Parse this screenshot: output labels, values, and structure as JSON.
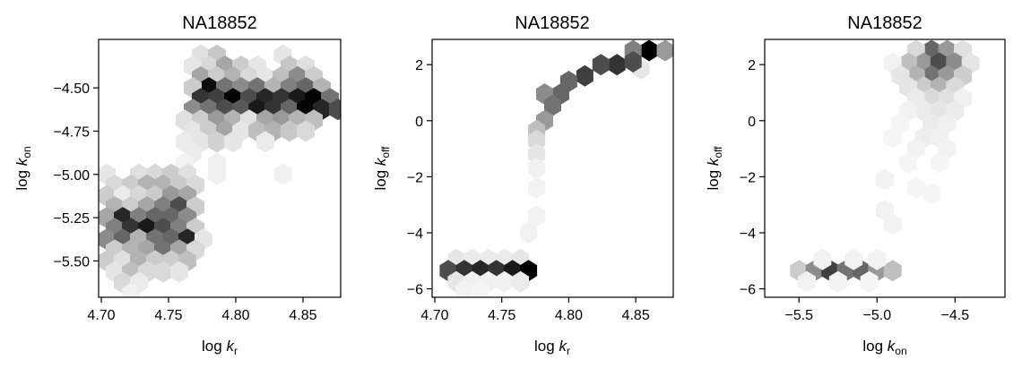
{
  "chart_data": [
    {
      "type": "heatmap",
      "subtype": "hexbin",
      "title": "NA18852",
      "xlabel": {
        "base": "log ",
        "italic": "k",
        "sub": "r"
      },
      "ylabel": {
        "base": "log ",
        "italic": "k",
        "sub": "on"
      },
      "xlim": [
        4.698,
        4.878
      ],
      "ylim": [
        -5.71,
        -4.22
      ],
      "xticks": [
        4.7,
        4.75,
        4.8,
        4.85
      ],
      "xtick_labels": [
        "4.70",
        "4.75",
        "4.80",
        "4.85"
      ],
      "yticks": [
        -4.5,
        -4.75,
        -5.0,
        -5.25,
        -5.5
      ],
      "ytick_labels": [
        "−4.50",
        "−4.75",
        "−5.00",
        "−5.25",
        "−5.50"
      ],
      "colormap": "greys",
      "bins": [
        [
          4.774,
          -4.312,
          0.12
        ],
        [
          4.786,
          -4.312,
          0.22
        ],
        [
          4.835,
          -4.312,
          0.1
        ],
        [
          4.78,
          -4.375,
          0.15
        ],
        [
          4.792,
          -4.375,
          0.35
        ],
        [
          4.804,
          -4.375,
          0.2
        ],
        [
          4.816,
          -4.375,
          0.1
        ],
        [
          4.84,
          -4.375,
          0.22
        ],
        [
          4.852,
          -4.375,
          0.12
        ],
        [
          4.768,
          -4.375,
          0.1
        ],
        [
          4.774,
          -4.437,
          0.35
        ],
        [
          4.786,
          -4.437,
          0.2
        ],
        [
          4.798,
          -4.437,
          0.3
        ],
        [
          4.81,
          -4.437,
          0.15
        ],
        [
          4.822,
          -4.437,
          0.1
        ],
        [
          4.834,
          -4.437,
          0.25
        ],
        [
          4.846,
          -4.437,
          0.45
        ],
        [
          4.858,
          -4.437,
          0.2
        ],
        [
          4.78,
          -4.5,
          0.95
        ],
        [
          4.792,
          -4.5,
          0.55
        ],
        [
          4.804,
          -4.5,
          0.45
        ],
        [
          4.816,
          -4.5,
          0.55
        ],
        [
          4.828,
          -4.5,
          0.3
        ],
        [
          4.84,
          -4.5,
          0.5
        ],
        [
          4.852,
          -4.5,
          0.6
        ],
        [
          4.864,
          -4.5,
          0.3
        ],
        [
          4.768,
          -4.5,
          0.2
        ],
        [
          4.774,
          -4.563,
          0.8
        ],
        [
          4.786,
          -4.563,
          0.75
        ],
        [
          4.798,
          -4.563,
          0.98
        ],
        [
          4.81,
          -4.563,
          0.7
        ],
        [
          4.822,
          -4.563,
          0.85
        ],
        [
          4.834,
          -4.563,
          0.8
        ],
        [
          4.846,
          -4.563,
          0.9
        ],
        [
          4.858,
          -4.563,
          0.98
        ],
        [
          4.87,
          -4.563,
          0.55
        ],
        [
          4.768,
          -4.625,
          0.45
        ],
        [
          4.78,
          -4.625,
          0.55
        ],
        [
          4.792,
          -4.625,
          0.7
        ],
        [
          4.804,
          -4.625,
          0.65
        ],
        [
          4.816,
          -4.625,
          0.9
        ],
        [
          4.828,
          -4.625,
          0.8
        ],
        [
          4.84,
          -4.625,
          0.6
        ],
        [
          4.852,
          -4.625,
          0.98
        ],
        [
          4.864,
          -4.625,
          0.85
        ],
        [
          4.876,
          -4.625,
          0.7
        ],
        [
          4.762,
          -4.687,
          0.12
        ],
        [
          4.774,
          -4.687,
          0.2
        ],
        [
          4.786,
          -4.687,
          0.4
        ],
        [
          4.798,
          -4.687,
          0.3
        ],
        [
          4.81,
          -4.687,
          0.12
        ],
        [
          4.822,
          -4.687,
          0.35
        ],
        [
          4.834,
          -4.687,
          0.4
        ],
        [
          4.846,
          -4.687,
          0.3
        ],
        [
          4.858,
          -4.687,
          0.25
        ],
        [
          4.768,
          -4.75,
          0.1
        ],
        [
          4.78,
          -4.75,
          0.2
        ],
        [
          4.792,
          -4.75,
          0.35
        ],
        [
          4.804,
          -4.75,
          0.1
        ],
        [
          4.816,
          -4.75,
          0.25
        ],
        [
          4.828,
          -4.75,
          0.3
        ],
        [
          4.84,
          -4.75,
          0.22
        ],
        [
          4.852,
          -4.75,
          0.15
        ],
        [
          4.762,
          -4.812,
          0.08
        ],
        [
          4.774,
          -4.812,
          0.1
        ],
        [
          4.786,
          -4.812,
          0.18
        ],
        [
          4.798,
          -4.812,
          0.1
        ],
        [
          4.822,
          -4.812,
          0.08
        ],
        [
          4.768,
          -4.875,
          0.08
        ],
        [
          4.786,
          -4.937,
          0.06
        ],
        [
          4.762,
          -4.937,
          0.05
        ],
        [
          4.786,
          -5.0,
          0.06
        ],
        [
          4.835,
          -5.0,
          0.06
        ],
        [
          4.704,
          -5.0,
          0.1
        ],
        [
          4.728,
          -5.0,
          0.12
        ],
        [
          4.74,
          -5.0,
          0.15
        ],
        [
          4.752,
          -5.0,
          0.2
        ],
        [
          4.764,
          -5.0,
          0.12
        ],
        [
          4.71,
          -5.063,
          0.15
        ],
        [
          4.722,
          -5.063,
          0.2
        ],
        [
          4.734,
          -5.063,
          0.3
        ],
        [
          4.746,
          -5.063,
          0.3
        ],
        [
          4.758,
          -5.063,
          0.2
        ],
        [
          4.77,
          -5.063,
          0.15
        ],
        [
          4.704,
          -5.125,
          0.2
        ],
        [
          4.716,
          -5.125,
          0.08
        ],
        [
          4.728,
          -5.125,
          0.15
        ],
        [
          4.74,
          -5.125,
          0.2
        ],
        [
          4.752,
          -5.125,
          0.4
        ],
        [
          4.764,
          -5.125,
          0.35
        ],
        [
          4.71,
          -5.188,
          0.3
        ],
        [
          4.722,
          -5.188,
          0.2
        ],
        [
          4.734,
          -5.188,
          0.35
        ],
        [
          4.746,
          -5.188,
          0.5
        ],
        [
          4.758,
          -5.188,
          0.7
        ],
        [
          4.77,
          -5.188,
          0.2
        ],
        [
          4.704,
          -5.25,
          0.35
        ],
        [
          4.716,
          -5.25,
          0.85
        ],
        [
          4.728,
          -5.25,
          0.5
        ],
        [
          4.74,
          -5.25,
          0.6
        ],
        [
          4.752,
          -5.25,
          0.6
        ],
        [
          4.764,
          -5.25,
          0.45
        ],
        [
          4.71,
          -5.313,
          0.5
        ],
        [
          4.722,
          -5.313,
          0.8
        ],
        [
          4.734,
          -5.313,
          0.9
        ],
        [
          4.746,
          -5.313,
          0.7
        ],
        [
          4.758,
          -5.313,
          0.5
        ],
        [
          4.77,
          -5.313,
          0.2
        ],
        [
          4.704,
          -5.375,
          0.45
        ],
        [
          4.716,
          -5.375,
          0.6
        ],
        [
          4.728,
          -5.375,
          0.3
        ],
        [
          4.74,
          -5.375,
          0.55
        ],
        [
          4.752,
          -5.375,
          0.6
        ],
        [
          4.764,
          -5.375,
          0.85
        ],
        [
          4.776,
          -5.375,
          0.1
        ],
        [
          4.71,
          -5.438,
          0.2
        ],
        [
          4.722,
          -5.438,
          0.3
        ],
        [
          4.734,
          -5.438,
          0.35
        ],
        [
          4.746,
          -5.438,
          0.55
        ],
        [
          4.758,
          -5.438,
          0.35
        ],
        [
          4.77,
          -5.438,
          0.15
        ],
        [
          4.704,
          -5.5,
          0.2
        ],
        [
          4.716,
          -5.5,
          0.12
        ],
        [
          4.728,
          -5.5,
          0.3
        ],
        [
          4.74,
          -5.5,
          0.2
        ],
        [
          4.752,
          -5.5,
          0.2
        ],
        [
          4.764,
          -5.5,
          0.25
        ],
        [
          4.71,
          -5.563,
          0.1
        ],
        [
          4.722,
          -5.563,
          0.25
        ],
        [
          4.734,
          -5.563,
          0.15
        ],
        [
          4.746,
          -5.563,
          0.15
        ],
        [
          4.758,
          -5.563,
          0.1
        ],
        [
          4.716,
          -5.625,
          0.15
        ],
        [
          4.728,
          -5.625,
          0.08
        ],
        [
          4.722,
          -5.688,
          0.06
        ]
      ]
    },
    {
      "type": "heatmap",
      "subtype": "hexbin",
      "title": "NA18852",
      "xlabel": {
        "base": "log ",
        "italic": "k",
        "sub": "r"
      },
      "ylabel": {
        "base": "log ",
        "italic": "k",
        "sub": "off"
      },
      "xlim": [
        4.698,
        4.878
      ],
      "ylim": [
        -6.3,
        2.9
      ],
      "xticks": [
        4.7,
        4.75,
        4.8,
        4.85
      ],
      "xtick_labels": [
        "4.70",
        "4.75",
        "4.80",
        "4.85"
      ],
      "yticks": [
        2,
        0,
        -2,
        -4,
        -6
      ],
      "ytick_labels": [
        "2",
        "0",
        "−2",
        "−4",
        "−6"
      ],
      "colormap": "greys",
      "bins": [
        [
          4.86,
          2.5,
          1.0
        ],
        [
          4.872,
          2.5,
          0.4
        ],
        [
          4.848,
          2.5,
          0.5
        ],
        [
          4.854,
          1.85,
          0.1
        ],
        [
          4.836,
          2.0,
          0.8
        ],
        [
          4.824,
          2.0,
          0.7
        ],
        [
          4.848,
          2.1,
          0.7
        ],
        [
          4.812,
          1.6,
          0.75
        ],
        [
          4.8,
          1.4,
          0.6
        ],
        [
          4.794,
          0.95,
          0.6
        ],
        [
          4.782,
          0.95,
          0.45
        ],
        [
          4.788,
          0.55,
          0.55
        ],
        [
          4.782,
          0.0,
          0.4
        ],
        [
          4.776,
          -0.35,
          0.25
        ],
        [
          4.776,
          -0.7,
          0.15
        ],
        [
          4.776,
          -1.2,
          0.1
        ],
        [
          4.776,
          -1.7,
          0.06
        ],
        [
          4.776,
          -2.4,
          0.05
        ],
        [
          4.776,
          -3.4,
          0.05
        ],
        [
          4.77,
          -4.0,
          0.05
        ],
        [
          4.716,
          -4.95,
          0.1
        ],
        [
          4.728,
          -4.95,
          0.08
        ],
        [
          4.74,
          -4.95,
          0.08
        ],
        [
          4.752,
          -4.95,
          0.08
        ],
        [
          4.764,
          -4.95,
          0.1
        ],
        [
          4.71,
          -5.35,
          0.7
        ],
        [
          4.722,
          -5.35,
          0.8
        ],
        [
          4.734,
          -5.35,
          0.85
        ],
        [
          4.746,
          -5.35,
          0.8
        ],
        [
          4.758,
          -5.35,
          0.9
        ],
        [
          4.77,
          -5.35,
          1.0
        ],
        [
          4.716,
          -5.75,
          0.1
        ],
        [
          4.728,
          -5.75,
          0.06
        ],
        [
          4.74,
          -5.75,
          0.06
        ],
        [
          4.752,
          -5.75,
          0.06
        ],
        [
          4.764,
          -5.75,
          0.08
        ],
        [
          4.722,
          -6.05,
          0.05
        ],
        [
          4.734,
          -6.05,
          0.04
        ]
      ]
    },
    {
      "type": "heatmap",
      "subtype": "hexbin",
      "title": "NA18852",
      "xlabel": {
        "base": "log ",
        "italic": "k",
        "sub": "on"
      },
      "ylabel": {
        "base": "log ",
        "italic": "k",
        "sub": "off"
      },
      "xlim": [
        -5.72,
        -4.18
      ],
      "ylim": [
        -6.3,
        2.9
      ],
      "xticks": [
        -5.5,
        -5.0,
        -4.5
      ],
      "xtick_labels": [
        "−5.5",
        "−5.0",
        "−4.5"
      ],
      "yticks": [
        2,
        0,
        -2,
        -4,
        -6
      ],
      "ytick_labels": [
        "2",
        "0",
        "−2",
        "−4",
        "−6"
      ],
      "colormap": "greys",
      "bins": [
        [
          -4.65,
          2.5,
          0.6
        ],
        [
          -4.55,
          2.5,
          0.4
        ],
        [
          -4.75,
          2.5,
          0.15
        ],
        [
          -4.45,
          2.5,
          0.12
        ],
        [
          -4.7,
          2.05,
          0.4
        ],
        [
          -4.6,
          2.05,
          0.7
        ],
        [
          -4.5,
          2.05,
          0.45
        ],
        [
          -4.8,
          2.05,
          0.25
        ],
        [
          -4.4,
          2.05,
          0.1
        ],
        [
          -4.9,
          2.05,
          0.05
        ],
        [
          -4.65,
          1.6,
          0.55
        ],
        [
          -4.55,
          1.6,
          0.4
        ],
        [
          -4.75,
          1.6,
          0.3
        ],
        [
          -4.45,
          1.6,
          0.2
        ],
        [
          -4.85,
          1.6,
          0.1
        ],
        [
          -4.7,
          1.2,
          0.2
        ],
        [
          -4.6,
          1.2,
          0.3
        ],
        [
          -4.5,
          1.2,
          0.15
        ],
        [
          -4.8,
          1.2,
          0.1
        ],
        [
          -4.65,
          0.8,
          0.15
        ],
        [
          -4.55,
          0.8,
          0.12
        ],
        [
          -4.75,
          0.8,
          0.08
        ],
        [
          -4.45,
          0.8,
          0.06
        ],
        [
          -4.7,
          0.35,
          0.08
        ],
        [
          -4.6,
          0.35,
          0.1
        ],
        [
          -4.5,
          0.35,
          0.08
        ],
        [
          -4.8,
          0.35,
          0.05
        ],
        [
          -4.65,
          -0.1,
          0.08
        ],
        [
          -4.55,
          -0.1,
          0.06
        ],
        [
          -4.85,
          -0.1,
          0.04
        ],
        [
          -4.7,
          -0.6,
          0.07
        ],
        [
          -4.6,
          -0.6,
          0.06
        ],
        [
          -4.9,
          -0.6,
          0.04
        ],
        [
          -4.75,
          -1.0,
          0.05
        ],
        [
          -4.55,
          -1.0,
          0.05
        ],
        [
          -4.8,
          -1.5,
          0.04
        ],
        [
          -4.6,
          -1.5,
          0.04
        ],
        [
          -4.95,
          -2.1,
          0.05
        ],
        [
          -4.75,
          -2.4,
          0.04
        ],
        [
          -4.65,
          -2.6,
          0.04
        ],
        [
          -4.95,
          -3.2,
          0.05
        ],
        [
          -4.9,
          -3.7,
          0.05
        ],
        [
          -5.5,
          -5.35,
          0.2
        ],
        [
          -5.4,
          -5.35,
          0.45
        ],
        [
          -5.3,
          -5.35,
          0.75
        ],
        [
          -5.2,
          -5.35,
          0.55
        ],
        [
          -5.1,
          -5.35,
          0.6
        ],
        [
          -5.0,
          -5.35,
          0.4
        ],
        [
          -4.9,
          -5.35,
          0.25
        ],
        [
          -5.35,
          -4.95,
          0.05
        ],
        [
          -5.15,
          -4.95,
          0.05
        ],
        [
          -5.0,
          -4.95,
          0.05
        ],
        [
          -5.45,
          -5.75,
          0.05
        ],
        [
          -5.25,
          -5.75,
          0.05
        ],
        [
          -5.05,
          -5.75,
          0.04
        ]
      ]
    }
  ]
}
